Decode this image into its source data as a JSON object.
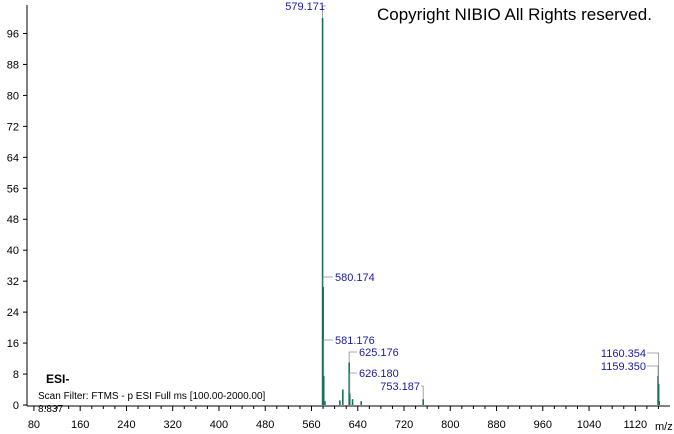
{
  "copyright": "Copyright NIBIO All Rights reserved.",
  "ion_mode": "ESI-",
  "scan_filter": "Scan Filter: FTMS - p ESI Full ms [100.00-2000.00]",
  "retention_time": "8.837",
  "colors": {
    "trace": "#1f6f5f",
    "label": "#1a1aa6",
    "axis": "#000000"
  },
  "chart_data": {
    "type": "bar",
    "title": "",
    "xlabel": "m/z",
    "ylabel": "",
    "xlim": [
      68,
      1180
    ],
    "ylim": [
      0,
      100
    ],
    "x_ticks": [
      80,
      160,
      240,
      320,
      400,
      480,
      560,
      640,
      720,
      800,
      880,
      960,
      1040,
      1120
    ],
    "x_tick_labels": [
      "80",
      "160",
      "240",
      "320",
      "400",
      "480",
      "560",
      "640",
      "720",
      "800",
      "880",
      "960",
      "1040",
      "1120"
    ],
    "y_ticks": [
      0,
      8,
      16,
      24,
      32,
      40,
      48,
      56,
      64,
      72,
      80,
      88,
      96
    ],
    "y_tick_labels": [
      "0",
      "8",
      "16",
      "24",
      "32",
      "40",
      "48",
      "56",
      "64",
      "72",
      "80",
      "88",
      "96"
    ],
    "peaks": [
      {
        "mz": 579.171,
        "intensity": 100
      },
      {
        "mz": 580.174,
        "intensity": 30.5
      },
      {
        "mz": 581.176,
        "intensity": 7.5
      },
      {
        "mz": 583.2,
        "intensity": 1.0
      },
      {
        "mz": 609.1,
        "intensity": 1.2
      },
      {
        "mz": 614.2,
        "intensity": 4.0
      },
      {
        "mz": 625.176,
        "intensity": 11.0
      },
      {
        "mz": 626.18,
        "intensity": 3.0
      },
      {
        "mz": 631.0,
        "intensity": 1.5
      },
      {
        "mz": 646.0,
        "intensity": 1.0
      },
      {
        "mz": 753.187,
        "intensity": 1.5
      },
      {
        "mz": 1159.35,
        "intensity": 7.5
      },
      {
        "mz": 1160.354,
        "intensity": 5.5
      },
      {
        "mz": 1161.3,
        "intensity": 1.0
      }
    ],
    "peak_labels": [
      {
        "text": "579.171",
        "mz": 579.171,
        "intensity": 100
      },
      {
        "text": "580.174",
        "mz": 580.174,
        "intensity": 30.5
      },
      {
        "text": "581.176",
        "mz": 581.176,
        "intensity": 7.5
      },
      {
        "text": "625.176",
        "mz": 625.176,
        "intensity": 11.0
      },
      {
        "text": "626.180",
        "mz": 626.18,
        "intensity": 3.0
      },
      {
        "text": "753.187",
        "mz": 753.187,
        "intensity": 1.5
      },
      {
        "text": "1160.354",
        "mz": 1160.354,
        "intensity": 5.5
      },
      {
        "text": "1159.350",
        "mz": 1159.35,
        "intensity": 7.5
      }
    ]
  }
}
